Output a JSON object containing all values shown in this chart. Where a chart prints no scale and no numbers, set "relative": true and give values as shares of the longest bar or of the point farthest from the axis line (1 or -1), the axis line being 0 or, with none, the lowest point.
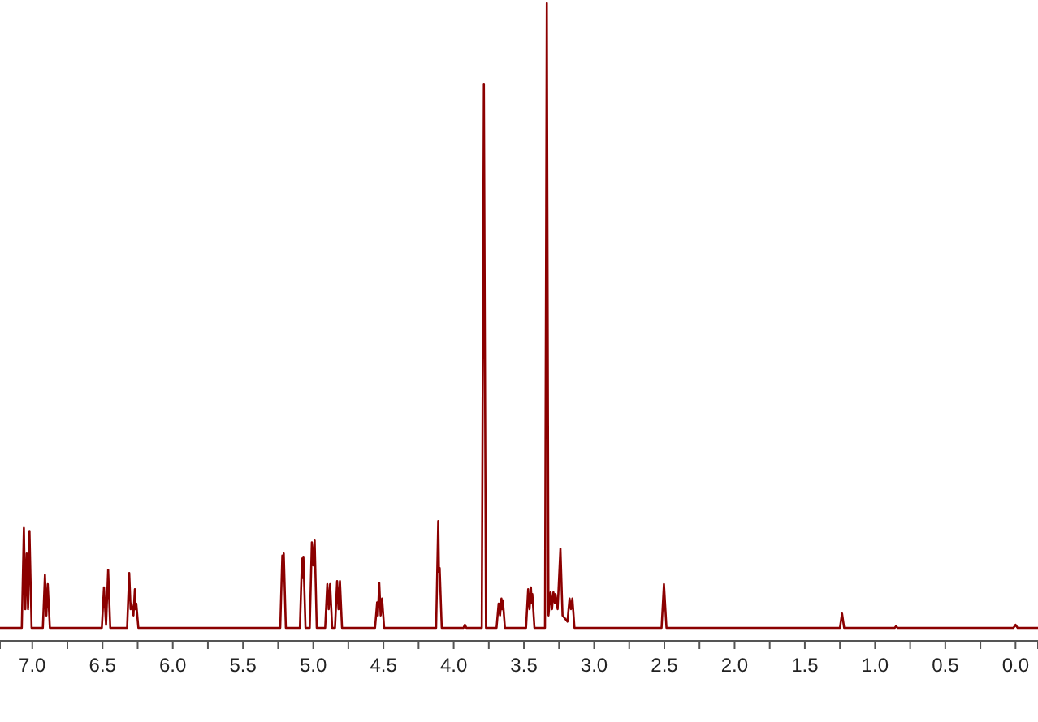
{
  "chart_data": {
    "type": "line",
    "relative": true,
    "xlim": [
      7.23,
      -0.16
    ],
    "xticks": [
      {
        "value": 7.0,
        "label": "7.0"
      },
      {
        "value": 6.75,
        "label": null
      },
      {
        "value": 6.5,
        "label": "6.5"
      },
      {
        "value": 6.25,
        "label": null
      },
      {
        "value": 6.0,
        "label": "6.0"
      },
      {
        "value": 5.75,
        "label": null
      },
      {
        "value": 5.5,
        "label": "5.5"
      },
      {
        "value": 5.25,
        "label": null
      },
      {
        "value": 5.0,
        "label": "5.0"
      },
      {
        "value": 4.75,
        "label": null
      },
      {
        "value": 4.5,
        "label": "4.5"
      },
      {
        "value": 4.25,
        "label": null
      },
      {
        "value": 4.0,
        "label": "4.0"
      },
      {
        "value": 3.75,
        "label": null
      },
      {
        "value": 3.5,
        "label": "3.5"
      },
      {
        "value": 3.25,
        "label": null
      },
      {
        "value": 3.0,
        "label": "3.0"
      },
      {
        "value": 2.75,
        "label": null
      },
      {
        "value": 2.5,
        "label": "2.5"
      },
      {
        "value": 2.25,
        "label": null
      },
      {
        "value": 2.0,
        "label": "2.0"
      },
      {
        "value": 1.75,
        "label": null
      },
      {
        "value": 1.5,
        "label": "1.5"
      },
      {
        "value": 1.25,
        "label": null
      },
      {
        "value": 1.0,
        "label": "1.0"
      },
      {
        "value": 0.75,
        "label": null
      },
      {
        "value": 0.5,
        "label": "0.5"
      },
      {
        "value": 0.25,
        "label": null
      },
      {
        "value": 0.0,
        "label": "0.0"
      }
    ],
    "grid": false,
    "marker": "none",
    "line_style": "solid",
    "series": [
      {
        "color": "#8b0000",
        "x": [
          7.23,
          7.075,
          7.06,
          7.05,
          7.04,
          7.03,
          7.02,
          7.005,
          6.925,
          6.91,
          6.9,
          6.89,
          6.875,
          6.505,
          6.49,
          6.475,
          6.46,
          6.445,
          6.325,
          6.31,
          6.3,
          6.295,
          6.28,
          6.27,
          6.265,
          6.26,
          6.245,
          5.235,
          5.22,
          5.215,
          5.21,
          5.195,
          5.095,
          5.08,
          5.075,
          5.07,
          5.055,
          5.025,
          5.01,
          5.0,
          4.99,
          4.975,
          4.915,
          4.9,
          4.89,
          4.88,
          4.865,
          4.845,
          4.83,
          4.82,
          4.81,
          4.795,
          4.56,
          4.545,
          4.54,
          4.53,
          4.52,
          4.51,
          4.495,
          4.125,
          4.11,
          4.105,
          4.1,
          4.085,
          3.93,
          3.92,
          3.91,
          3.8,
          3.785,
          3.77,
          3.695,
          3.68,
          3.67,
          3.66,
          3.655,
          3.65,
          3.635,
          3.485,
          3.47,
          3.46,
          3.45,
          3.445,
          3.44,
          3.425,
          3.35,
          3.337,
          3.325,
          3.31,
          3.3,
          3.29,
          3.28,
          3.275,
          3.26,
          3.24,
          3.225,
          3.19,
          3.175,
          3.165,
          3.155,
          3.14,
          2.52,
          2.503,
          2.485,
          1.25,
          1.235,
          1.22,
          0.86,
          0.85,
          0.84,
          0.015,
          0.0,
          -0.015,
          -0.16
        ],
        "values": [
          0,
          0,
          0.16,
          0.03,
          0.119,
          0.03,
          0.155,
          0,
          0,
          0.085,
          0.02,
          0.07,
          0,
          0,
          0.065,
          0.005,
          0.093,
          0,
          0,
          0.088,
          0.03,
          0.039,
          0.02,
          0.062,
          0.03,
          0.039,
          0,
          0,
          0.116,
          0.08,
          0.119,
          0,
          0,
          0.111,
          0.08,
          0.114,
          0,
          0,
          0.137,
          0.1,
          0.14,
          0,
          0,
          0.07,
          0.03,
          0.07,
          0,
          0,
          0.075,
          0.03,
          0.075,
          0,
          0,
          0.041,
          0.02,
          0.072,
          0.02,
          0.047,
          0,
          0,
          0.171,
          0.09,
          0.096,
          0,
          0,
          0.005,
          0,
          0,
          0.871,
          0,
          0,
          0.039,
          0.02,
          0.047,
          0.03,
          0.044,
          0,
          0,
          0.062,
          0.03,
          0.065,
          0.04,
          0.054,
          0,
          0,
          1,
          0.02,
          0.057,
          0.03,
          0.057,
          0.04,
          0.054,
          0.03,
          0.127,
          0.02,
          0.01,
          0.047,
          0.03,
          0.047,
          0,
          0,
          0.07,
          0,
          0,
          0.023,
          0,
          0,
          0.003,
          0,
          0,
          0.005,
          0,
          0
        ]
      }
    ]
  }
}
